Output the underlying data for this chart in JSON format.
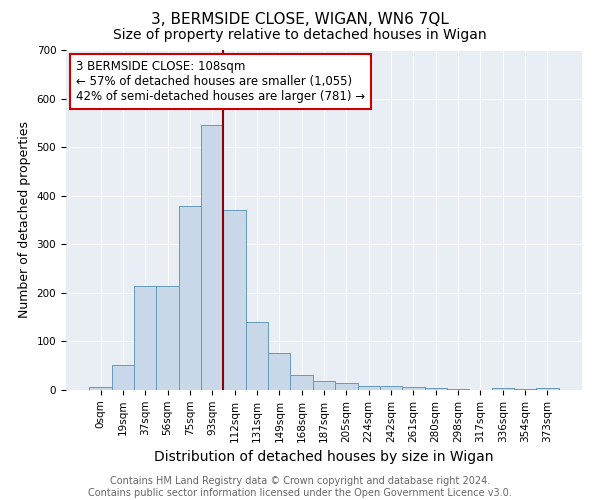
{
  "title": "3, BERMSIDE CLOSE, WIGAN, WN6 7QL",
  "subtitle": "Size of property relative to detached houses in Wigan",
  "xlabel": "Distribution of detached houses by size in Wigan",
  "ylabel": "Number of detached properties",
  "footer_line1": "Contains HM Land Registry data © Crown copyright and database right 2024.",
  "footer_line2": "Contains public sector information licensed under the Open Government Licence v3.0.",
  "bar_labels": [
    "0sqm",
    "19sqm",
    "37sqm",
    "56sqm",
    "75sqm",
    "93sqm",
    "112sqm",
    "131sqm",
    "149sqm",
    "168sqm",
    "187sqm",
    "205sqm",
    "224sqm",
    "242sqm",
    "261sqm",
    "280sqm",
    "298sqm",
    "317sqm",
    "336sqm",
    "354sqm",
    "373sqm"
  ],
  "bar_values": [
    7,
    52,
    215,
    215,
    378,
    546,
    370,
    140,
    76,
    31,
    19,
    14,
    9,
    9,
    6,
    4,
    2,
    0,
    5,
    2,
    5
  ],
  "bar_color": "#c8d8e8",
  "bar_edge_color": "#6699bb",
  "annotation_line1": "3 BERMSIDE CLOSE: 108sqm",
  "annotation_line2": "← 57% of detached houses are smaller (1,055)",
  "annotation_line3": "42% of semi-detached houses are larger (781) →",
  "annotation_box_edge": "#cc0000",
  "vline_x": 5.5,
  "vline_color": "#8b0000",
  "ylim": [
    0,
    700
  ],
  "yticks": [
    0,
    100,
    200,
    300,
    400,
    500,
    600,
    700
  ],
  "background_color": "#e8eef4",
  "title_fontsize": 11,
  "subtitle_fontsize": 10,
  "xlabel_fontsize": 10,
  "ylabel_fontsize": 9,
  "tick_fontsize": 7.5,
  "annotation_fontsize": 8.5,
  "footer_fontsize": 7
}
